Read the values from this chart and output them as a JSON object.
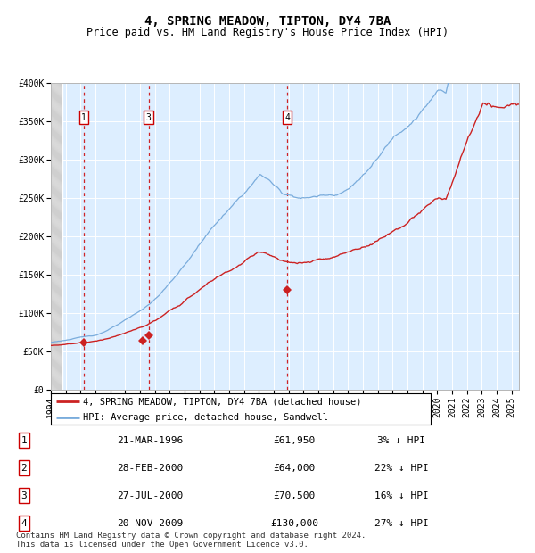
{
  "title": "4, SPRING MEADOW, TIPTON, DY4 7BA",
  "subtitle": "Price paid vs. HM Land Registry's House Price Index (HPI)",
  "ylim": [
    0,
    400000
  ],
  "yticks": [
    0,
    50000,
    100000,
    150000,
    200000,
    250000,
    300000,
    350000,
    400000
  ],
  "ytick_labels": [
    "£0",
    "£50K",
    "£100K",
    "£150K",
    "£200K",
    "£250K",
    "£300K",
    "£350K",
    "£400K"
  ],
  "xlim_start": 1994.0,
  "xlim_end": 2025.5,
  "hpi_color": "#7aacdc",
  "price_color": "#cc2222",
  "background_plot": "#ddeeff",
  "sale_dates": [
    1996.22,
    2000.16,
    2000.57,
    2009.9
  ],
  "sale_prices": [
    61950,
    64000,
    70500,
    130000
  ],
  "sale_labels": [
    "1",
    "2",
    "3",
    "4"
  ],
  "vline_indices": [
    0,
    2,
    3
  ],
  "legend_line1": "4, SPRING MEADOW, TIPTON, DY4 7BA (detached house)",
  "legend_line2": "HPI: Average price, detached house, Sandwell",
  "table_rows": [
    [
      "1",
      "21-MAR-1996",
      "£61,950",
      "3% ↓ HPI"
    ],
    [
      "2",
      "28-FEB-2000",
      "£64,000",
      "22% ↓ HPI"
    ],
    [
      "3",
      "27-JUL-2000",
      "£70,500",
      "16% ↓ HPI"
    ],
    [
      "4",
      "20-NOV-2009",
      "£130,000",
      "27% ↓ HPI"
    ]
  ],
  "footer": "Contains HM Land Registry data © Crown copyright and database right 2024.\nThis data is licensed under the Open Government Licence v3.0.",
  "title_fontsize": 10,
  "subtitle_fontsize": 8.5,
  "tick_fontsize": 7,
  "legend_fontsize": 7.5,
  "table_fontsize": 8,
  "footer_fontsize": 6.5
}
